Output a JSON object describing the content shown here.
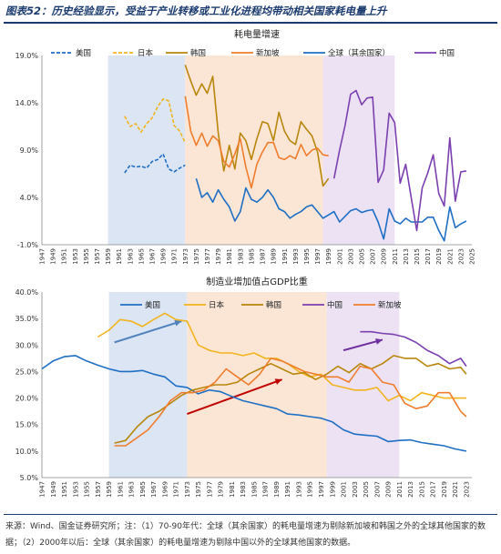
{
  "figure_title": "图表52：历史经验显示，受益于产业转移或工业化进程均带动相关国家耗电量上升",
  "source_note": "来源：Wind、国金证券研究所；注：（1）70-90年代：全球（其余国家）的耗电量增速为剔除新加坡和韩国之外的全球其他国家的数据；（2）2000年以后：全球（其余国家）的耗电量增速为剔除中国以外的全球其他国家的数据。",
  "colors": {
    "us": "#1f6fc5",
    "japan": "#f2b41e",
    "korea": "#b8860b",
    "singapore": "#f07d2c",
    "global": "#1f6fc5",
    "china": "#7b3fb0",
    "shade_blue": "#dbe5f4",
    "shade_orange": "#fbe6d6",
    "shade_purple": "#ece2f3",
    "arrow_blue": "#4f81bd",
    "arrow_red": "#c00000",
    "arrow_purple": "#7030a0"
  },
  "chart_data": [
    {
      "type": "line",
      "title": "耗电量增速",
      "ylim": [
        -1,
        19
      ],
      "yticks": [
        "-1.0%",
        "4.0%",
        "9.0%",
        "14.0%",
        "19.0%"
      ],
      "ytick_values": [
        -1,
        4,
        9,
        14,
        19
      ],
      "xlim": [
        1947,
        2025
      ],
      "xticks": [
        "1947",
        "1949",
        "1951",
        "1953",
        "1955",
        "1957",
        "1959",
        "1961",
        "1963",
        "1965",
        "1967",
        "1969",
        "1971",
        "1973",
        "1975",
        "1977",
        "1979",
        "1981",
        "1983",
        "1985",
        "1987",
        "1989",
        "1991",
        "1993",
        "1995",
        "1997",
        "1999",
        "2001",
        "2003",
        "2005",
        "2007",
        "2009",
        "2011",
        "2013",
        "2015",
        "2017",
        "2019",
        "2021",
        "2023",
        "2025"
      ],
      "xtick_values": [
        1947,
        1949,
        1951,
        1953,
        1955,
        1957,
        1959,
        1961,
        1963,
        1965,
        1967,
        1969,
        1971,
        1973,
        1975,
        1977,
        1979,
        1981,
        1983,
        1985,
        1987,
        1989,
        1991,
        1993,
        1995,
        1997,
        1999,
        2001,
        2003,
        2005,
        2007,
        2009,
        2011,
        2013,
        2015,
        2017,
        2019,
        2021,
        2023,
        2025
      ],
      "shaded_ranges": [
        {
          "from": 1959,
          "to": 1973,
          "color": "shade_blue"
        },
        {
          "from": 1973,
          "to": 1998,
          "color": "shade_orange"
        },
        {
          "from": 1998,
          "to": 2011,
          "color": "shade_purple"
        }
      ],
      "legend": [
        "美国",
        "日本",
        "韩国",
        "新加坡",
        "全球（其余国家）",
        "中国"
      ],
      "series": [
        {
          "name": "美国",
          "color": "us",
          "dash": true,
          "x": [
            1962,
            1963,
            1964,
            1965,
            1966,
            1967,
            1968,
            1969,
            1970,
            1971,
            1972,
            1973
          ],
          "y": [
            6.6,
            7.4,
            7.2,
            7.3,
            7.1,
            7.8,
            8.0,
            8.6,
            7.0,
            6.7,
            7.1,
            7.4
          ]
        },
        {
          "name": "日本",
          "color": "japan",
          "dash": true,
          "x": [
            1962,
            1963,
            1964,
            1965,
            1966,
            1967,
            1968,
            1969,
            1970,
            1971,
            1972,
            1973
          ],
          "y": [
            12.6,
            11.5,
            11.8,
            10.9,
            11.8,
            12.4,
            13.6,
            14.4,
            14.2,
            11.6,
            11.0,
            9.8
          ]
        },
        {
          "name": "韩国",
          "color": "korea",
          "x": [
            1973,
            1974,
            1975,
            1976,
            1977,
            1978,
            1979,
            1980,
            1981,
            1982,
            1983,
            1984,
            1985,
            1986,
            1987,
            1988,
            1989,
            1990,
            1991,
            1992,
            1993,
            1994,
            1995,
            1996,
            1997,
            1998,
            1999
          ],
          "y": [
            18.0,
            16.3,
            14.8,
            16.0,
            15.0,
            16.8,
            10.8,
            6.8,
            9.5,
            7.0,
            10.8,
            10.0,
            8.0,
            10.2,
            12.0,
            11.8,
            10.0,
            13.0,
            11.0,
            10.0,
            9.6,
            12.0,
            11.2,
            10.5,
            8.8,
            5.2,
            6.0
          ]
        },
        {
          "name": "新加坡",
          "color": "singapore",
          "x": [
            1973,
            1974,
            1975,
            1976,
            1977,
            1978,
            1979,
            1980,
            1981,
            1982,
            1983,
            1984,
            1985,
            1986,
            1987,
            1988,
            1989,
            1990,
            1991,
            1992,
            1993,
            1994,
            1995,
            1996,
            1997,
            1998,
            1999
          ],
          "y": [
            14.7,
            11.0,
            9.5,
            10.8,
            9.4,
            10.5,
            10.0,
            7.8,
            7.2,
            8.6,
            10.2,
            7.2,
            5.0,
            7.5,
            8.8,
            9.8,
            9.8,
            8.2,
            8.0,
            8.4,
            8.1,
            9.6,
            8.4,
            9.0,
            9.2,
            8.5,
            8.4
          ]
        },
        {
          "name": "全球（其余国家）",
          "color": "global",
          "x": [
            1975,
            1976,
            1977,
            1978,
            1979,
            1980,
            1981,
            1982,
            1983,
            1984,
            1985,
            1986,
            1987,
            1988,
            1989,
            1990,
            1991,
            1992,
            1993,
            1994,
            1995,
            1996,
            1997,
            1998,
            2000,
            2001,
            2002,
            2003,
            2004,
            2005,
            2006,
            2007,
            2008,
            2009,
            2010,
            2011,
            2012,
            2013,
            2014,
            2015,
            2016,
            2017,
            2018,
            2019,
            2020,
            2021,
            2022,
            2023,
            2024
          ],
          "y": [
            6.0,
            4.0,
            4.5,
            3.5,
            4.8,
            3.8,
            3.0,
            1.5,
            2.5,
            5.0,
            3.8,
            3.5,
            4.0,
            4.8,
            4.0,
            2.8,
            2.5,
            1.8,
            2.2,
            2.5,
            3.0,
            3.2,
            2.5,
            1.8,
            2.5,
            1.4,
            2.0,
            2.6,
            2.8,
            2.4,
            2.6,
            2.7,
            1.4,
            -0.4,
            2.8,
            1.5,
            1.2,
            1.8,
            1.4,
            1.4,
            1.4,
            1.9,
            1.9,
            0.5,
            -0.6,
            3.0,
            0.8,
            1.2,
            1.5
          ]
        },
        {
          "name": "中国",
          "color": "china",
          "x": [
            2000,
            2001,
            2002,
            2003,
            2004,
            2005,
            2006,
            2007,
            2008,
            2009,
            2010,
            2011,
            2012,
            2013,
            2014,
            2015,
            2016,
            2017,
            2018,
            2019,
            2020,
            2021,
            2022,
            2023,
            2024
          ],
          "y": [
            6.0,
            9.0,
            11.6,
            14.9,
            15.3,
            13.8,
            14.5,
            14.6,
            5.6,
            6.9,
            12.9,
            11.9,
            5.5,
            7.5,
            4.0,
            0.5,
            5.0,
            6.6,
            8.5,
            4.4,
            3.1,
            10.3,
            3.6,
            6.7,
            6.8
          ]
        }
      ]
    },
    {
      "type": "line",
      "title": "制造业增加值占GDP比重",
      "ylim": [
        5,
        40
      ],
      "yticks": [
        "5.0%",
        "10.0%",
        "15.0%",
        "20.0%",
        "25.0%",
        "30.0%",
        "35.0%",
        "40.0%"
      ],
      "ytick_values": [
        5,
        10,
        15,
        20,
        25,
        30,
        35,
        40
      ],
      "xlim": [
        1947,
        2024
      ],
      "xticks": [
        "1947",
        "1949",
        "1951",
        "1953",
        "1955",
        "1957",
        "1959",
        "1961",
        "1963",
        "1965",
        "1967",
        "1969",
        "1971",
        "1973",
        "1975",
        "1977",
        "1979",
        "1981",
        "1983",
        "1985",
        "1987",
        "1989",
        "1991",
        "1993",
        "1995",
        "1997",
        "1999",
        "2001",
        "2003",
        "2005",
        "2007",
        "2009",
        "2011",
        "2013",
        "2015",
        "2017",
        "2019",
        "2021",
        "2023"
      ],
      "xtick_values": [
        1947,
        1949,
        1951,
        1953,
        1955,
        1957,
        1959,
        1961,
        1963,
        1965,
        1967,
        1969,
        1971,
        1973,
        1975,
        1977,
        1979,
        1981,
        1983,
        1985,
        1987,
        1989,
        1991,
        1993,
        1995,
        1997,
        1999,
        2001,
        2003,
        2005,
        2007,
        2009,
        2011,
        2013,
        2015,
        2017,
        2019,
        2021,
        2023
      ],
      "shaded_ranges": [
        {
          "from": 1959,
          "to": 1973,
          "color": "shade_blue"
        },
        {
          "from": 1973,
          "to": 1998,
          "color": "shade_orange"
        },
        {
          "from": 1998,
          "to": 2011,
          "color": "shade_purple"
        }
      ],
      "legend": [
        "美国",
        "日本",
        "韩国",
        "中国",
        "新加坡"
      ],
      "arrows": [
        {
          "x1": 1960,
          "y1": 30.5,
          "x2": 1972,
          "y2": 34.5,
          "color": "arrow_blue"
        },
        {
          "x1": 1973,
          "y1": 17.0,
          "x2": 1990,
          "y2": 23.5,
          "color": "arrow_red"
        },
        {
          "x1": 2001,
          "y1": 29.0,
          "x2": 2008,
          "y2": 31.0,
          "color": "arrow_purple"
        }
      ],
      "series": [
        {
          "name": "美国",
          "color": "us",
          "x": [
            1947,
            1949,
            1951,
            1953,
            1955,
            1957,
            1959,
            1961,
            1963,
            1965,
            1967,
            1969,
            1971,
            1973,
            1975,
            1977,
            1979,
            1981,
            1983,
            1985,
            1987,
            1989,
            1991,
            1993,
            1995,
            1997,
            1999,
            2001,
            2003,
            2005,
            2007,
            2009,
            2011,
            2013,
            2015,
            2017,
            2019,
            2021,
            2023
          ],
          "y": [
            25.5,
            27.0,
            27.8,
            28.0,
            27.0,
            26.2,
            25.5,
            25.0,
            25.0,
            25.2,
            24.5,
            24.0,
            22.3,
            22.0,
            20.8,
            21.5,
            21.2,
            20.3,
            19.5,
            19.0,
            18.5,
            18.0,
            17.0,
            16.8,
            16.5,
            16.2,
            15.5,
            14.0,
            13.2,
            13.0,
            12.8,
            11.8,
            12.0,
            12.1,
            11.6,
            11.3,
            11.0,
            10.4,
            10.0
          ]
        },
        {
          "name": "日本",
          "color": "japan",
          "x": [
            1957,
            1959,
            1961,
            1963,
            1965,
            1967,
            1969,
            1971,
            1973,
            1975,
            1977,
            1979,
            1981,
            1983,
            1985,
            1987,
            1989,
            1991,
            1993,
            1995,
            1997,
            1999,
            2001,
            2003,
            2005,
            2007,
            2009,
            2011,
            2013,
            2015,
            2017,
            2019,
            2021,
            2023
          ],
          "y": [
            31.5,
            32.8,
            34.8,
            34.5,
            33.5,
            34.8,
            36.0,
            34.8,
            34.5,
            30.0,
            29.0,
            28.5,
            28.5,
            28.0,
            28.5,
            27.5,
            27.5,
            26.5,
            25.0,
            24.0,
            24.5,
            22.5,
            22.0,
            21.5,
            21.5,
            22.0,
            19.5,
            20.5,
            19.5,
            21.0,
            20.5,
            20.0,
            20.0,
            20.0
          ]
        },
        {
          "name": "韩国",
          "color": "korea",
          "x": [
            1960,
            1962,
            1964,
            1966,
            1968,
            1970,
            1972,
            1974,
            1976,
            1978,
            1980,
            1982,
            1984,
            1986,
            1988,
            1990,
            1992,
            1994,
            1996,
            1998,
            2000,
            2002,
            2004,
            2006,
            2008,
            2010,
            2012,
            2014,
            2016,
            2018,
            2020,
            2022,
            2023
          ],
          "y": [
            11.5,
            12.0,
            14.5,
            16.5,
            17.5,
            19.0,
            20.5,
            21.5,
            22.0,
            22.5,
            22.5,
            23.0,
            24.5,
            25.5,
            26.5,
            25.5,
            24.5,
            24.8,
            23.5,
            24.5,
            26.0,
            24.8,
            26.5,
            25.5,
            26.5,
            28.0,
            27.5,
            27.5,
            26.0,
            26.5,
            25.5,
            25.8,
            24.5
          ]
        },
        {
          "name": "中国",
          "color": "china",
          "x": [
            2004,
            2006,
            2008,
            2010,
            2012,
            2014,
            2016,
            2018,
            2020,
            2022,
            2023
          ],
          "y": [
            32.5,
            32.5,
            32.2,
            32.0,
            31.5,
            30.5,
            29.0,
            28.0,
            26.5,
            27.5,
            26.0
          ]
        },
        {
          "name": "新加坡",
          "color": "singapore",
          "x": [
            1960,
            1962,
            1964,
            1966,
            1968,
            1970,
            1972,
            1974,
            1976,
            1978,
            1980,
            1982,
            1984,
            1986,
            1988,
            1990,
            1992,
            1994,
            1996,
            1998,
            2000,
            2002,
            2004,
            2006,
            2008,
            2010,
            2012,
            2014,
            2016,
            2018,
            2020,
            2022,
            2023
          ],
          "y": [
            11.0,
            11.0,
            12.5,
            14.0,
            16.5,
            19.5,
            21.0,
            21.0,
            21.5,
            23.0,
            25.5,
            24.0,
            22.5,
            24.5,
            27.5,
            27.0,
            26.0,
            25.0,
            24.5,
            24.0,
            24.0,
            23.0,
            26.0,
            25.5,
            23.0,
            22.5,
            19.0,
            18.0,
            18.5,
            21.0,
            21.0,
            17.5,
            16.5
          ]
        }
      ]
    }
  ]
}
